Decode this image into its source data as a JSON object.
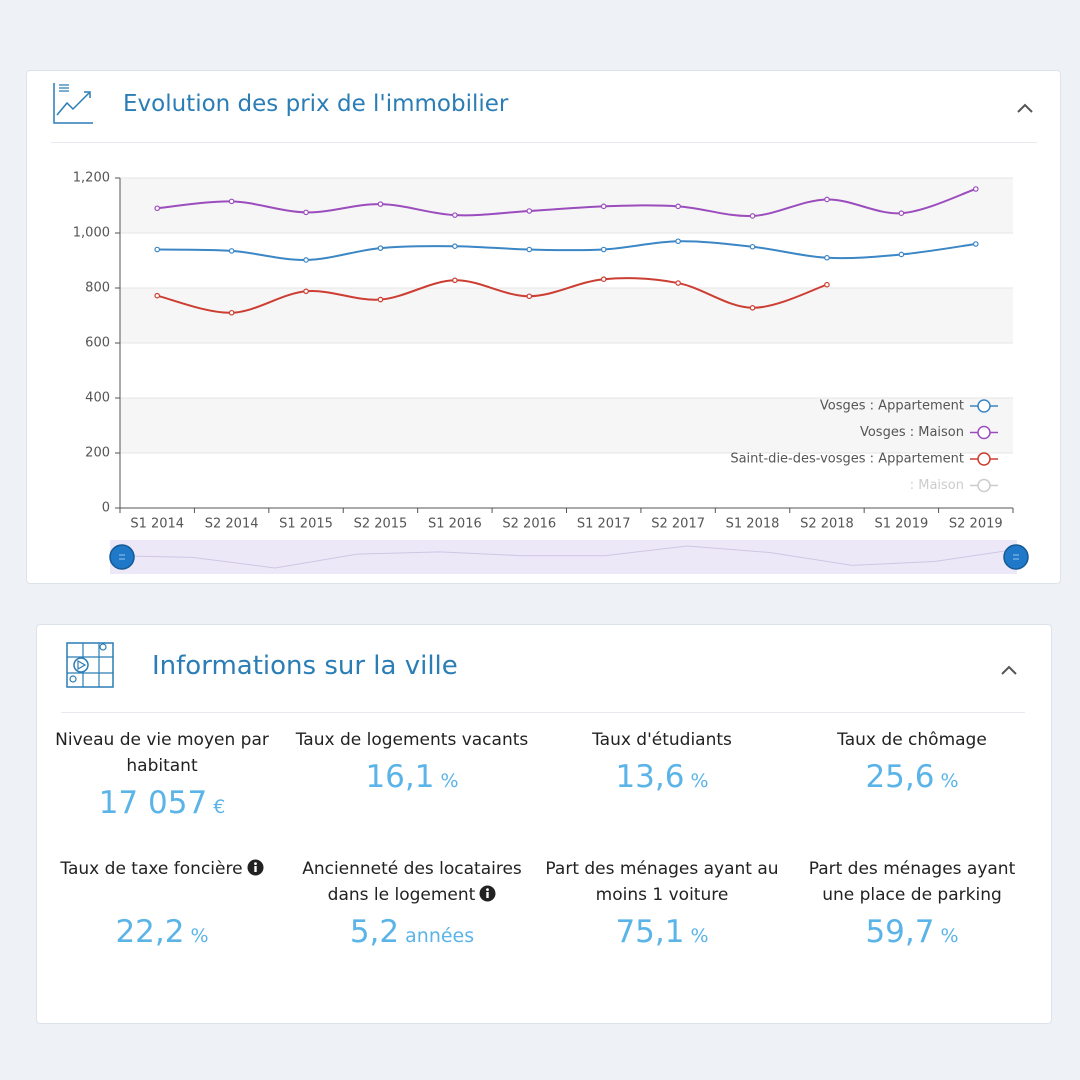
{
  "chart_data": {
    "type": "line",
    "title": "Evolution des prix de l'immobilier",
    "categories": [
      "S1 2014",
      "S2 2014",
      "S1 2015",
      "S2 2015",
      "S1 2016",
      "S2 2016",
      "S1 2017",
      "S2 2017",
      "S1 2018",
      "S2 2018",
      "S1 2019",
      "S2 2019"
    ],
    "series": [
      {
        "name": "Vosges : Appartement",
        "color": "#3b86c4",
        "values": [
          940,
          935,
          902,
          945,
          952,
          940,
          940,
          970,
          950,
          910,
          922,
          960
        ]
      },
      {
        "name": "Vosges : Maison",
        "color": "#9b4dbe",
        "values": [
          1090,
          1115,
          1075,
          1105,
          1065,
          1080,
          1097,
          1097,
          1062,
          1122,
          1072,
          1160
        ]
      },
      {
        "name": "Saint-die-des-vosges : Appartement",
        "color": "#cc3d32",
        "values": [
          772,
          710,
          788,
          758,
          828,
          770,
          832,
          818,
          728,
          812,
          null,
          null
        ]
      },
      {
        "name": ": Maison",
        "color": "#cccccc",
        "hidden": true,
        "values": [
          null,
          null,
          null,
          null,
          null,
          null,
          null,
          null,
          null,
          null,
          null,
          null
        ]
      }
    ],
    "ylim": [
      0,
      1200
    ],
    "yticks": [
      0,
      200,
      400,
      600,
      800,
      {
        "value": 1000,
        "label": "1,000"
      },
      {
        "value": 1200,
        "label": "1,200"
      }
    ],
    "grid": true,
    "legend": "lower-right"
  },
  "info": {
    "title": "Informations sur la ville",
    "items": [
      {
        "label": "Niveau de vie moyen par habitant",
        "value": "17 057",
        "unit": "€"
      },
      {
        "label": "Taux de logements vacants",
        "value": "16,1",
        "unit": "%"
      },
      {
        "label": "Taux d'étudiants",
        "value": "13,6",
        "unit": "%"
      },
      {
        "label": "Taux de chômage",
        "value": "25,6",
        "unit": "%"
      },
      {
        "label": "Taux de taxe foncière",
        "value": "22,2",
        "unit": "%"
      },
      {
        "label": "Ancienneté des locataires dans le logement",
        "value": "5,2",
        "unit": "années"
      },
      {
        "label": "Part des ménages ayant au moins 1 voiture",
        "value": "75,1",
        "unit": "%"
      },
      {
        "label": "Part des ménages ayant une place de parking",
        "value": "59,7",
        "unit": "%"
      }
    ]
  }
}
